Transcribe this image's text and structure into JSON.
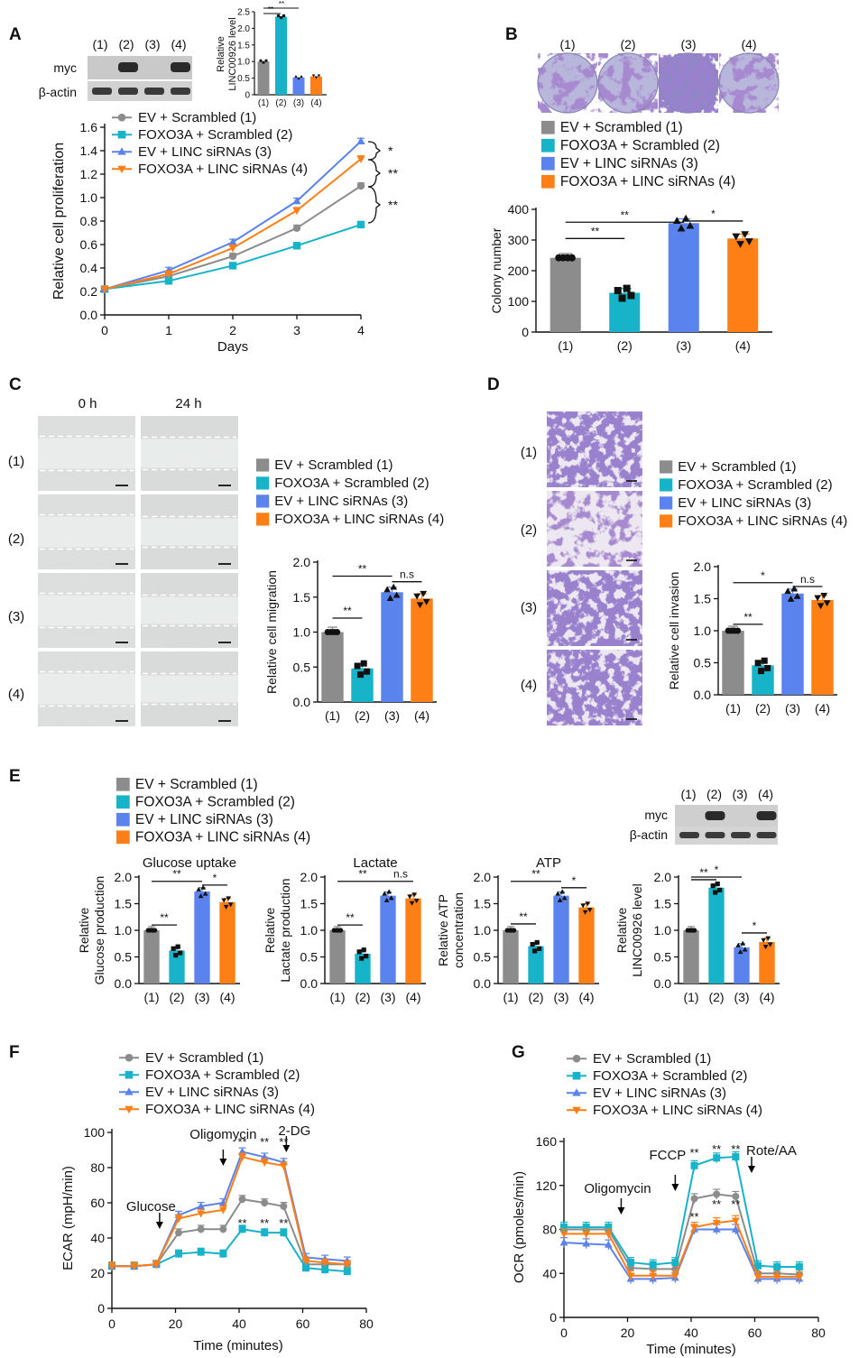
{
  "colors": {
    "g1": "#8c8c8c",
    "g2": "#17b3c8",
    "g3": "#5b83ee",
    "g4": "#ff7f17"
  },
  "groups": [
    "(1)",
    "(2)",
    "(3)",
    "(4)"
  ],
  "legend": [
    "EV + Scrambled (1)",
    "FOXO3A + Scrambled (2)",
    "EV + LINC siRNAs (3)",
    "FOXO3A + LINC siRNAs (4)"
  ],
  "panels": {
    "A": {
      "letter": "A",
      "blot_labels": [
        "myc",
        "β-actin"
      ],
      "inset": {
        "ylabel": [
          "Relative",
          "LINC00926 level"
        ],
        "ticks": [
          "0",
          "0.5",
          "1.0",
          "1.5",
          "2.0",
          "2.5"
        ],
        "values": [
          1.0,
          2.35,
          0.52,
          0.55
        ],
        "ylim": [
          0,
          2.5
        ],
        "sig": [
          "**",
          "**"
        ]
      },
      "ylabel": "Relative cell proliferation",
      "xlabel": "Days",
      "sig": [
        "*",
        "**",
        "**"
      ]
    },
    "B": {
      "letter": "B",
      "ylabel": "Colony number",
      "sig": [
        "**",
        "**",
        "*"
      ]
    },
    "C": {
      "letter": "C",
      "times": [
        "0 h",
        "24 h"
      ],
      "ylabel": "Relative cell migration",
      "sig": [
        "**",
        "**",
        "n.s"
      ]
    },
    "D": {
      "letter": "D",
      "ylabel": "Relative cell invasion",
      "sig": [
        "**",
        "*",
        "n.s"
      ]
    },
    "E": {
      "letter": "E",
      "blot_labels": [
        "myc",
        "β-actin"
      ],
      "subcharts": [
        {
          "title": "Glucose uptake",
          "ylabel": [
            "Relative",
            "Glucose production"
          ],
          "sig": [
            "**",
            "**",
            "*"
          ]
        },
        {
          "title": "Lactate",
          "ylabel": [
            "Relative",
            "Lactate production"
          ],
          "sig": [
            "**",
            "**",
            "n.s"
          ]
        },
        {
          "title": "ATP",
          "ylabel": [
            "Relative ATP",
            "concentration"
          ],
          "sig": [
            "**",
            "**",
            "*"
          ]
        },
        {
          "title": "",
          "ylabel": [
            "Relative",
            "LINC00926 level"
          ],
          "sig": [
            "**",
            "*",
            "*"
          ]
        }
      ]
    },
    "F": {
      "letter": "F",
      "ylabel": "ECAR (mpH/min)",
      "xlabel": "Time (minutes)",
      "injections": [
        "Glucose",
        "Oligomycin",
        "2-DG"
      ],
      "stars": "**"
    },
    "G": {
      "letter": "G",
      "ylabel": "OCR (pmoles/min)",
      "xlabel": "Time (minutes)",
      "injections": [
        "Oligomycin",
        "FCCP",
        "Rote/AA"
      ],
      "stars": "**"
    }
  },
  "chart_data": [
    {
      "id": "A",
      "type": "line",
      "x": [
        0,
        1,
        2,
        3,
        4
      ],
      "xlim": [
        0,
        4
      ],
      "ylim": [
        0,
        1.6
      ],
      "ticks_y": [
        0,
        0.2,
        0.4,
        0.6,
        0.8,
        1.0,
        1.2,
        1.4,
        1.6
      ],
      "series": [
        {
          "name": "EV + Scrambled (1)",
          "values": [
            0.22,
            0.33,
            0.5,
            0.74,
            1.1
          ]
        },
        {
          "name": "FOXO3A + Scrambled (2)",
          "values": [
            0.22,
            0.29,
            0.42,
            0.59,
            0.77
          ]
        },
        {
          "name": "EV + LINC siRNAs (3)",
          "values": [
            0.22,
            0.38,
            0.62,
            0.97,
            1.48
          ]
        },
        {
          "name": "FOXO3A + LINC siRNAs (4)",
          "values": [
            0.22,
            0.35,
            0.57,
            0.89,
            1.33
          ]
        }
      ]
    },
    {
      "id": "B",
      "type": "bar",
      "categories": [
        "(1)",
        "(2)",
        "(3)",
        "(4)"
      ],
      "values": [
        242,
        128,
        355,
        305
      ],
      "ylim": [
        0,
        400
      ],
      "ticks_y": [
        0,
        100,
        200,
        300,
        400
      ]
    },
    {
      "id": "C",
      "type": "bar",
      "categories": [
        "(1)",
        "(2)",
        "(3)",
        "(4)"
      ],
      "values": [
        1.0,
        0.48,
        1.57,
        1.48
      ],
      "ylim": [
        0,
        2.0
      ],
      "ticks_y": [
        0,
        0.5,
        1.0,
        1.5,
        2.0
      ]
    },
    {
      "id": "D",
      "type": "bar",
      "categories": [
        "(1)",
        "(2)",
        "(3)",
        "(4)"
      ],
      "values": [
        1.0,
        0.46,
        1.58,
        1.48
      ],
      "ylim": [
        0,
        2.0
      ],
      "ticks_y": [
        0,
        0.5,
        1.0,
        1.5,
        2.0
      ]
    },
    {
      "id": "E1",
      "type": "bar",
      "categories": [
        "(1)",
        "(2)",
        "(3)",
        "(4)"
      ],
      "values": [
        1.0,
        0.62,
        1.73,
        1.53
      ],
      "ylim": [
        0,
        2.0
      ],
      "ticks_y": [
        0,
        0.5,
        1.0,
        1.5,
        2.0
      ]
    },
    {
      "id": "E2",
      "type": "bar",
      "categories": [
        "(1)",
        "(2)",
        "(3)",
        "(4)"
      ],
      "values": [
        1.0,
        0.56,
        1.65,
        1.6
      ],
      "ylim": [
        0,
        2.0
      ],
      "ticks_y": [
        0,
        0.5,
        1.0,
        1.5,
        2.0
      ]
    },
    {
      "id": "E3",
      "type": "bar",
      "categories": [
        "(1)",
        "(2)",
        "(3)",
        "(4)"
      ],
      "values": [
        1.0,
        0.7,
        1.65,
        1.43
      ],
      "ylim": [
        0,
        2.0
      ],
      "ticks_y": [
        0,
        0.5,
        1.0,
        1.5,
        2.0
      ]
    },
    {
      "id": "E4",
      "type": "bar",
      "categories": [
        "(1)",
        "(2)",
        "(3)",
        "(4)"
      ],
      "values": [
        1.0,
        1.8,
        0.68,
        0.78
      ],
      "ylim": [
        0,
        2.0
      ],
      "ticks_y": [
        0,
        0.5,
        1.0,
        1.5,
        2.0
      ]
    },
    {
      "id": "F",
      "type": "line",
      "x": [
        0,
        7,
        14,
        21,
        28,
        35,
        41,
        48,
        54,
        61,
        67,
        74
      ],
      "xlim": [
        0,
        80
      ],
      "ylim": [
        0,
        100
      ],
      "ticks_x": [
        0,
        20,
        40,
        60,
        80
      ],
      "ticks_y": [
        0,
        20,
        40,
        60,
        80,
        100
      ],
      "series": [
        {
          "name": "EV + Scrambled (1)",
          "values": [
            24,
            24,
            25,
            43,
            45,
            45,
            62,
            60,
            58,
            25,
            25,
            25
          ]
        },
        {
          "name": "FOXO3A + Scrambled (2)",
          "values": [
            24,
            24,
            25,
            31,
            32,
            31,
            45,
            43,
            43,
            23,
            22,
            21
          ]
        },
        {
          "name": "EV + LINC siRNAs (3)",
          "values": [
            24,
            24,
            25,
            53,
            58,
            60,
            89,
            86,
            83,
            29,
            28,
            27
          ]
        },
        {
          "name": "FOXO3A + LINC siRNAs (4)",
          "values": [
            24,
            24,
            25,
            51,
            54,
            56,
            86,
            83,
            81,
            27,
            26,
            25
          ]
        }
      ]
    },
    {
      "id": "G",
      "type": "line",
      "x": [
        0,
        7,
        14,
        21,
        28,
        35,
        41,
        48,
        54,
        61,
        67,
        74
      ],
      "xlim": [
        0,
        80
      ],
      "ylim": [
        0,
        160
      ],
      "ticks_x": [
        0,
        20,
        40,
        60,
        80
      ],
      "ticks_y": [
        0,
        40,
        80,
        120,
        160
      ],
      "series": [
        {
          "name": "EV + Scrambled (1)",
          "values": [
            80,
            80,
            80,
            45,
            44,
            44,
            108,
            112,
            110,
            40,
            40,
            39
          ]
        },
        {
          "name": "FOXO3A + Scrambled (2)",
          "values": [
            82,
            82,
            82,
            50,
            48,
            50,
            138,
            145,
            146,
            47,
            46,
            46
          ]
        },
        {
          "name": "EV + LINC siRNAs (3)",
          "values": [
            68,
            67,
            66,
            35,
            35,
            36,
            80,
            80,
            80,
            35,
            35,
            35
          ]
        },
        {
          "name": "FOXO3A + LINC siRNAs (4)",
          "values": [
            76,
            76,
            76,
            38,
            38,
            38,
            82,
            86,
            88,
            37,
            37,
            37
          ]
        }
      ]
    }
  ]
}
